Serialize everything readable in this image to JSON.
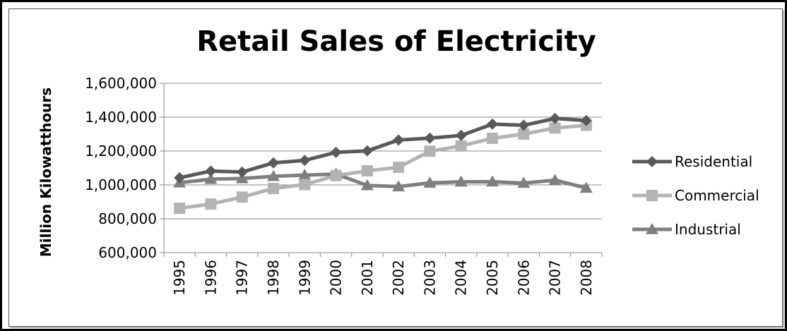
{
  "chart_data": {
    "type": "line",
    "title": "Retail Sales of Electricity",
    "xlabel": "",
    "ylabel": "Million Kilowatthours",
    "categories": [
      "1995",
      "1996",
      "1997",
      "1998",
      "1999",
      "2000",
      "2001",
      "2002",
      "2003",
      "2004",
      "2005",
      "2006",
      "2007",
      "2008"
    ],
    "ylim": [
      600000,
      1600000
    ],
    "yticks": [
      600000,
      800000,
      1000000,
      1200000,
      1400000,
      1600000
    ],
    "ytick_labels": [
      "600,000",
      "800,000",
      "1,000,000",
      "1,200,000",
      "1,400,000",
      "1,600,000"
    ],
    "grid": true,
    "legend_position": "right",
    "series": [
      {
        "name": "Residential",
        "marker": "diamond",
        "color": "#595959",
        "values": [
          1042000,
          1082000,
          1076000,
          1130000,
          1145000,
          1192000,
          1201000,
          1265000,
          1276000,
          1292000,
          1359000,
          1352000,
          1392000,
          1380000
        ]
      },
      {
        "name": "Commercial",
        "marker": "square",
        "color": "#b3b3b3",
        "values": [
          862000,
          887000,
          928000,
          979000,
          1002000,
          1055000,
          1083000,
          1104000,
          1199000,
          1230000,
          1275000,
          1300000,
          1336000,
          1352000
        ]
      },
      {
        "name": "Industrial",
        "marker": "triangle",
        "color": "#7f7f7f",
        "values": [
          1013000,
          1034000,
          1038000,
          1051000,
          1058000,
          1064000,
          997000,
          990000,
          1012000,
          1018000,
          1019000,
          1011000,
          1028000,
          982000
        ]
      }
    ]
  }
}
